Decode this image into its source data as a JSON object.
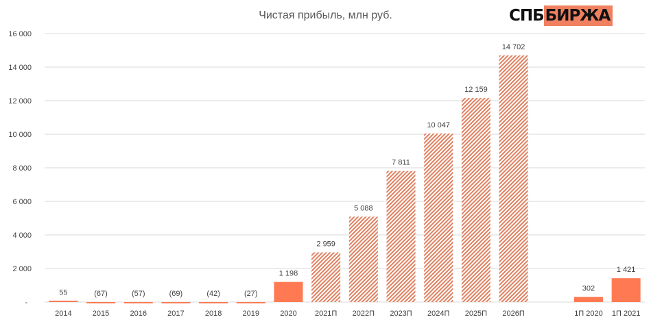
{
  "logo": {
    "part1": "СПБ",
    "part2": "БИРЖА"
  },
  "colors": {
    "bar": "#ff7a52",
    "hatch": "#e0805f",
    "grid": "#d9d9d9",
    "text": "#404040"
  },
  "chart_data": {
    "type": "bar",
    "title": "Чистая прибыль, млн руб.",
    "xlabel": "",
    "ylabel": "",
    "ylim": [
      0,
      16000
    ],
    "yticks": [
      0,
      2000,
      4000,
      6000,
      8000,
      10000,
      12000,
      14000,
      16000
    ],
    "ytick_labels": [
      "-",
      "2 000",
      "4 000",
      "6 000",
      "8 000",
      "10 000",
      "12 000",
      "14 000",
      "16 000"
    ],
    "grid": true,
    "categories": [
      "2014",
      "2015",
      "2016",
      "2017",
      "2018",
      "2019",
      "2020",
      "2021П",
      "2022П",
      "2023П",
      "2024П",
      "2025П",
      "2026П",
      "1П 2020",
      "1П 2021"
    ],
    "values": [
      55,
      -67,
      -57,
      -69,
      -42,
      -27,
      1198,
      2959,
      5088,
      7811,
      10047,
      12159,
      14702,
      302,
      1421
    ],
    "data_labels": [
      "55",
      "(67)",
      "(57)",
      "(69)",
      "(42)",
      "(27)",
      "1 198",
      "2 959",
      "5 088",
      "7 811",
      "10 047",
      "12 159",
      "14 702",
      "302",
      "1 421"
    ],
    "kind": [
      "actual",
      "actual",
      "actual",
      "actual",
      "actual",
      "actual",
      "actual",
      "forecast",
      "forecast",
      "forecast",
      "forecast",
      "forecast",
      "forecast",
      "actual",
      "actual"
    ]
  }
}
